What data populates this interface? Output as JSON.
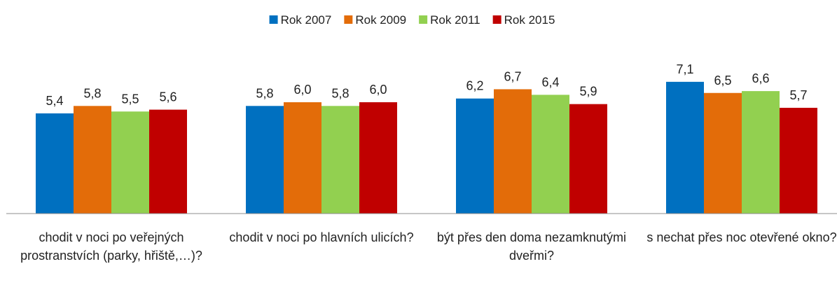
{
  "chart_data": {
    "type": "bar",
    "categories": [
      "chodit v noci po veřejných prostranstvích (parky, hřiště,…)?",
      "chodit v noci po hlavních ulicích?",
      "být přes den doma nezamknutými dveřmi?",
      "s  nechat přes noc otevřené okno?"
    ],
    "series": [
      {
        "name": "Rok 2007",
        "color": "#0070c0",
        "values": [
          5.4,
          5.8,
          6.2,
          7.1
        ],
        "value_labels": [
          "5,4",
          "5,8",
          "6,2",
          "7,1"
        ]
      },
      {
        "name": "Rok 2009",
        "color": "#e36c09",
        "values": [
          5.8,
          6.0,
          6.7,
          6.5
        ],
        "value_labels": [
          "5,8",
          "6,0",
          "6,7",
          "6,5"
        ]
      },
      {
        "name": "Rok 2011",
        "color": "#92d050",
        "values": [
          5.5,
          5.8,
          6.4,
          6.6
        ],
        "value_labels": [
          "5,5",
          "5,8",
          "6,4",
          "6,6"
        ]
      },
      {
        "name": "Rok 2015",
        "color": "#c00000",
        "values": [
          5.6,
          6.0,
          5.9,
          5.7
        ],
        "value_labels": [
          "5,6",
          "6,0",
          "5,9",
          "5,7"
        ]
      }
    ],
    "ylim": [
      0,
      10
    ],
    "legend": "top"
  }
}
